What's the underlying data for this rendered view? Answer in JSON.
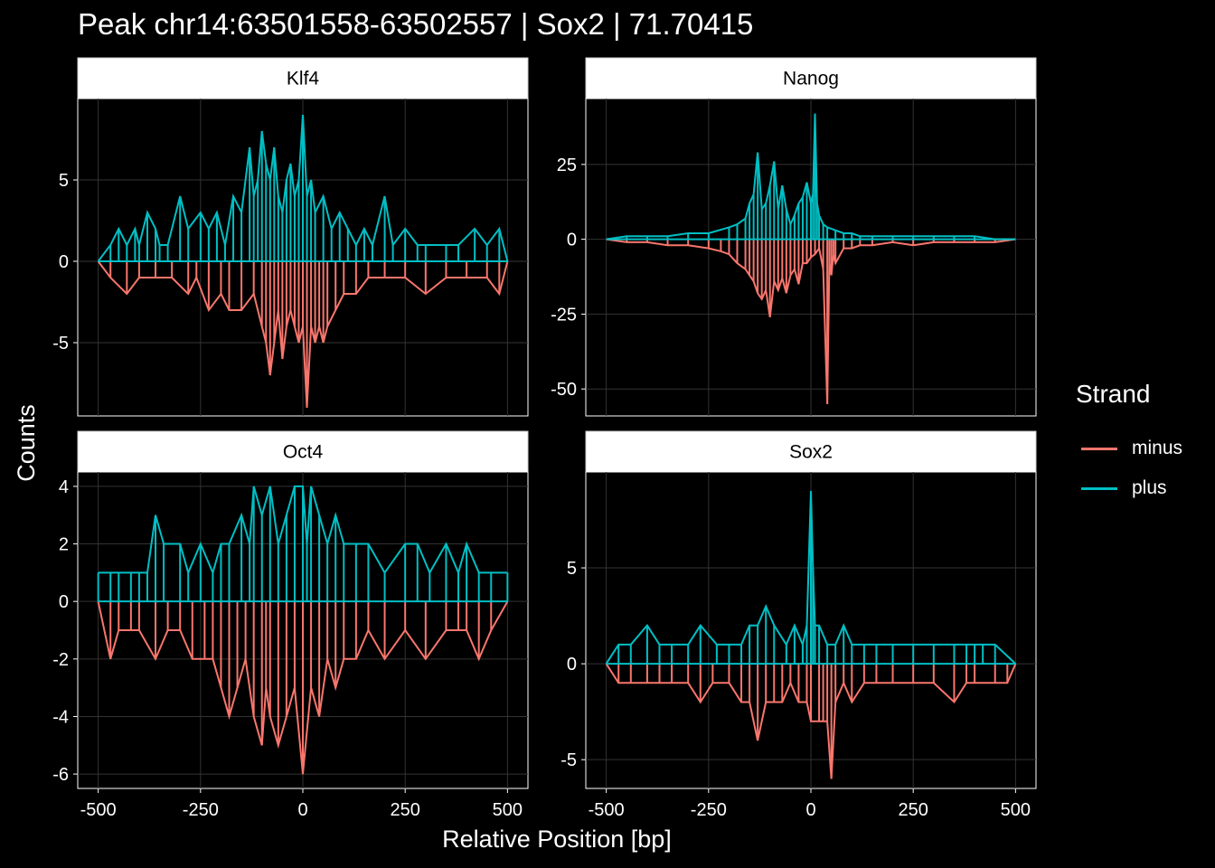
{
  "title": "Peak chr14:63501558-63502557 | Sox2 | 71.70415",
  "colors": {
    "minus": "#F8766D",
    "plus": "#00BFC4",
    "background": "#000000",
    "strip": "#ffffff",
    "grid": "#333333"
  },
  "chart_data": {
    "type": "line",
    "xlabel": "Relative Position [bp]",
    "ylabel": "Counts",
    "xlim": [
      -500,
      500
    ],
    "x_ticks": [
      -500,
      -250,
      0,
      250,
      500
    ],
    "x_tick_labels": [
      "-500",
      "-250",
      "0",
      "250",
      "500"
    ],
    "grid": true,
    "legend": {
      "title": "Strand",
      "placement": "right",
      "entries": [
        "minus",
        "plus"
      ]
    },
    "panels": [
      {
        "name": "Klf4",
        "ylim": [
          -9.5,
          10
        ],
        "y_ticks": [
          -5,
          0,
          5
        ],
        "y_tick_labels": [
          "-5",
          "0",
          "5"
        ],
        "series": [
          {
            "name": "plus",
            "x": [
              -500,
              -470,
              -450,
              -430,
              -410,
              -400,
              -380,
              -360,
              -350,
              -330,
              -300,
              -280,
              -250,
              -230,
              -210,
              -190,
              -170,
              -150,
              -130,
              -120,
              -110,
              -100,
              -90,
              -80,
              -70,
              -60,
              -50,
              -40,
              -30,
              -20,
              -10,
              0,
              10,
              20,
              30,
              50,
              70,
              90,
              110,
              130,
              150,
              170,
              200,
              220,
              250,
              280,
              300,
              350,
              380,
              420,
              450,
              480,
              500
            ],
            "values": [
              0,
              1,
              2,
              1,
              2,
              1,
              3,
              2,
              1,
              1,
              4,
              2,
              3,
              2,
              3,
              1,
              4,
              3,
              7,
              4,
              5,
              8,
              6,
              5,
              7,
              4,
              3,
              5,
              6,
              4,
              5,
              9,
              4,
              5,
              3,
              4,
              2,
              3,
              2,
              1,
              2,
              1,
              4,
              1,
              2,
              1,
              1,
              1,
              1,
              2,
              1,
              2,
              0
            ]
          },
          {
            "name": "minus",
            "x": [
              -500,
              -470,
              -430,
              -400,
              -360,
              -320,
              -280,
              -260,
              -230,
              -200,
              -180,
              -150,
              -120,
              -100,
              -90,
              -80,
              -70,
              -60,
              -50,
              -40,
              -30,
              -20,
              -10,
              0,
              10,
              20,
              30,
              40,
              50,
              60,
              80,
              100,
              130,
              160,
              200,
              250,
              300,
              350,
              400,
              450,
              480,
              500
            ],
            "values": [
              0,
              -1,
              -2,
              -1,
              -1,
              -1,
              -2,
              -1,
              -3,
              -2,
              -3,
              -3,
              -2,
              -4,
              -5,
              -7,
              -5,
              -3,
              -6,
              -4,
              -3,
              -4,
              -5,
              -4,
              -9,
              -4,
              -5,
              -4,
              -5,
              -4,
              -3,
              -2,
              -2,
              -1,
              -1,
              -1,
              -2,
              -1,
              -1,
              -1,
              -2,
              0
            ]
          }
        ]
      },
      {
        "name": "Nanog",
        "ylim": [
          -59,
          47
        ],
        "y_ticks": [
          -50,
          -25,
          0,
          25
        ],
        "y_tick_labels": [
          "-50",
          "-25",
          "0",
          "25"
        ],
        "series": [
          {
            "name": "plus",
            "x": [
              -500,
              -450,
              -400,
              -350,
              -300,
              -250,
              -200,
              -180,
              -160,
              -150,
              -140,
              -130,
              -120,
              -110,
              -100,
              -90,
              -80,
              -70,
              -60,
              -50,
              -40,
              -30,
              -20,
              -10,
              0,
              5,
              10,
              15,
              20,
              30,
              40,
              60,
              80,
              100,
              120,
              150,
              200,
              250,
              300,
              350,
              400,
              450,
              500
            ],
            "values": [
              0,
              1,
              1,
              1,
              2,
              2,
              4,
              5,
              7,
              12,
              15,
              29,
              10,
              12,
              18,
              26,
              10,
              18,
              10,
              5,
              8,
              12,
              14,
              19,
              12,
              15,
              42,
              12,
              8,
              5,
              4,
              3,
              2,
              2,
              1,
              1,
              1,
              1,
              1,
              1,
              1,
              0,
              0
            ]
          },
          {
            "name": "minus",
            "x": [
              -500,
              -450,
              -400,
              -350,
              -300,
              -250,
              -220,
              -200,
              -180,
              -160,
              -150,
              -140,
              -130,
              -120,
              -110,
              -100,
              -90,
              -80,
              -70,
              -60,
              -50,
              -40,
              -30,
              -20,
              -10,
              0,
              10,
              20,
              30,
              40,
              45,
              50,
              55,
              60,
              80,
              100,
              120,
              150,
              200,
              250,
              300,
              350,
              400,
              450,
              500
            ],
            "values": [
              0,
              -1,
              -1,
              -2,
              -2,
              -3,
              -4,
              -5,
              -8,
              -10,
              -12,
              -14,
              -18,
              -20,
              -17,
              -26,
              -14,
              -17,
              -13,
              -18,
              -12,
              -10,
              -15,
              -8,
              -8,
              -6,
              -5,
              -3,
              -10,
              -55,
              -8,
              -12,
              -5,
              -8,
              -3,
              -3,
              -2,
              -2,
              -1,
              -2,
              -1,
              -1,
              -1,
              -1,
              0
            ]
          }
        ]
      },
      {
        "name": "Oct4",
        "ylim": [
          -6.5,
          4.5
        ],
        "y_ticks": [
          -6,
          -4,
          -2,
          0,
          2,
          4
        ],
        "y_tick_labels": [
          "-6",
          "-4",
          "-2",
          "0",
          "2",
          "4"
        ],
        "series": [
          {
            "name": "plus",
            "x": [
              -500,
              -470,
              -450,
              -420,
              -400,
              -380,
              -360,
              -340,
              -300,
              -280,
              -250,
              -220,
              -200,
              -180,
              -150,
              -130,
              -120,
              -100,
              -80,
              -60,
              -40,
              -20,
              0,
              10,
              20,
              40,
              60,
              80,
              100,
              130,
              160,
              200,
              250,
              280,
              310,
              350,
              380,
              400,
              430,
              460,
              500
            ],
            "values": [
              1,
              1,
              1,
              1,
              1,
              1,
              3,
              2,
              2,
              1,
              2,
              1,
              2,
              2,
              3,
              2,
              4,
              3,
              4,
              2,
              3,
              4,
              4,
              2,
              4,
              3,
              2,
              3,
              2,
              2,
              2,
              1,
              2,
              2,
              1,
              2,
              1,
              2,
              1,
              1,
              1
            ]
          },
          {
            "name": "minus",
            "x": [
              -500,
              -470,
              -450,
              -420,
              -400,
              -360,
              -330,
              -300,
              -270,
              -240,
              -220,
              -200,
              -180,
              -160,
              -140,
              -120,
              -100,
              -90,
              -80,
              -60,
              -40,
              -20,
              0,
              20,
              40,
              60,
              80,
              100,
              130,
              160,
              200,
              250,
              300,
              350,
              380,
              400,
              430,
              460,
              500
            ],
            "values": [
              0,
              -2,
              -1,
              -1,
              -1,
              -2,
              -1,
              -1,
              -2,
              -2,
              -2,
              -3,
              -4,
              -3,
              -2,
              -4,
              -5,
              -3,
              -4,
              -5,
              -4,
              -3,
              -6,
              -3,
              -4,
              -2,
              -3,
              -2,
              -2,
              -1,
              -2,
              -1,
              -2,
              -1,
              -1,
              -1,
              -2,
              -1,
              0
            ]
          }
        ]
      },
      {
        "name": "Sox2",
        "ylim": [
          -6.5,
          10
        ],
        "y_ticks": [
          -5,
          0,
          5
        ],
        "y_tick_labels": [
          "-5",
          "0",
          "5"
        ],
        "series": [
          {
            "name": "plus",
            "x": [
              -500,
              -470,
              -440,
              -400,
              -370,
              -340,
              -300,
              -270,
              -230,
              -200,
              -170,
              -150,
              -130,
              -110,
              -90,
              -60,
              -40,
              -20,
              -10,
              0,
              5,
              10,
              20,
              40,
              60,
              80,
              100,
              130,
              160,
              200,
              250,
              300,
              350,
              380,
              400,
              420,
              450,
              500
            ],
            "values": [
              0,
              1,
              1,
              2,
              1,
              1,
              1,
              2,
              1,
              1,
              1,
              2,
              2,
              3,
              2,
              1,
              2,
              1,
              2,
              9,
              5,
              2,
              2,
              1,
              1,
              2,
              1,
              1,
              1,
              1,
              1,
              1,
              1,
              1,
              1,
              1,
              1,
              0
            ]
          },
          {
            "name": "minus",
            "x": [
              -500,
              -470,
              -440,
              -400,
              -370,
              -340,
              -300,
              -270,
              -240,
              -200,
              -170,
              -150,
              -130,
              -110,
              -90,
              -70,
              -50,
              -30,
              -10,
              0,
              20,
              30,
              40,
              50,
              60,
              80,
              100,
              130,
              160,
              200,
              250,
              300,
              350,
              380,
              400,
              450,
              480,
              500
            ],
            "values": [
              0,
              -1,
              -1,
              -1,
              -1,
              -1,
              -1,
              -2,
              -1,
              -1,
              -2,
              -2,
              -4,
              -2,
              -2,
              -2,
              -1,
              -2,
              -2,
              -3,
              -3,
              -3,
              -3,
              -6,
              -2,
              -1,
              -2,
              -1,
              -1,
              -1,
              -1,
              -1,
              -2,
              -1,
              -1,
              -1,
              -1,
              0
            ]
          }
        ]
      }
    ]
  }
}
